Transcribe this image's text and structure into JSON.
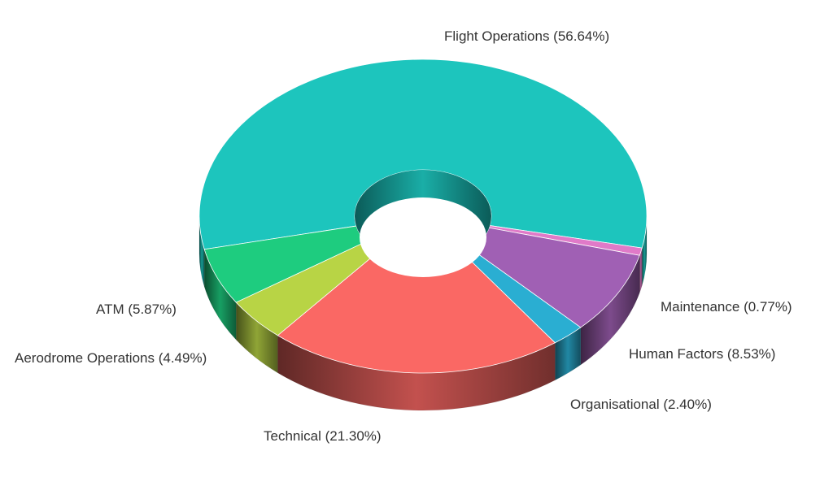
{
  "chart_data": {
    "type": "pie",
    "variant": "3d-donut",
    "title": "",
    "categories": [
      "Flight Operations",
      "Maintenance",
      "Human Factors",
      "Organisational",
      "Technical",
      "Aerodrome Operations",
      "ATM"
    ],
    "values": [
      56.64,
      0.77,
      8.53,
      2.4,
      21.3,
      4.49,
      5.87
    ],
    "labels": [
      "Flight Operations (56.64%)",
      "Maintenance (0.77%)",
      "Human Factors (8.53%)",
      "Organisational (2.40%)",
      "Technical (21.30%)",
      "Aerodrome Operations (4.49%)",
      "ATM  (5.87%)"
    ],
    "colors": [
      "#1dc5bd",
      "#e07ac8",
      "#a060b4",
      "#2aaed2",
      "#fa6864",
      "#b8d445",
      "#1ecc7f"
    ],
    "legend": "none",
    "label_placement": "outside"
  }
}
